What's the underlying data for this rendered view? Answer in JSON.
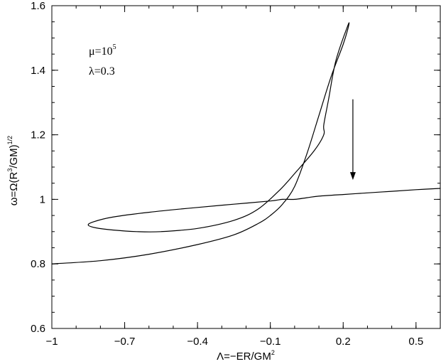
{
  "chart_data": {
    "type": "line",
    "title": "",
    "xlabel": {
      "prefix": "Λ=−ER/GM",
      "sup": "2"
    },
    "ylabel": {
      "prefix": "ω=Ω(R",
      "sup1": "3",
      "mid": "/GM)",
      "sup2": "1/2"
    },
    "xlim": [
      -1.0,
      0.6
    ],
    "ylim": [
      0.6,
      1.6
    ],
    "xticks": [
      -1.0,
      -0.7,
      -0.4,
      -0.1,
      0.2,
      0.5
    ],
    "xtick_labels": [
      "−1",
      "−0.7",
      "−0.4",
      "−0.1",
      "0.2",
      "0.5"
    ],
    "yticks": [
      0.6,
      0.8,
      1.0,
      1.2,
      1.4,
      1.6
    ],
    "ytick_labels": [
      "0.6",
      "0.8",
      "1",
      "1.2",
      "1.4",
      "1.6"
    ],
    "grid": false,
    "annotations": [
      {
        "text_base": "μ=10",
        "text_sup": "5"
      },
      {
        "text": "λ=0.3"
      }
    ],
    "arrow": {
      "x": 0.24,
      "y_start": 1.31,
      "y_end": 1.06,
      "direction": "down"
    },
    "series": [
      {
        "x": [
          -1.0,
          -0.8,
          -0.6,
          -0.4,
          -0.25,
          -0.15,
          -0.1,
          -0.05,
          0.0,
          0.05,
          0.1,
          0.15,
          0.2,
          0.22,
          0.22,
          0.17,
          0.14,
          0.12,
          0.12,
          0.08,
          0.0,
          -0.06,
          -0.15,
          -0.25,
          -0.4,
          -0.55,
          -0.65,
          -0.75,
          -0.82,
          -0.85,
          -0.83,
          -0.75,
          -0.6,
          -0.4,
          -0.25,
          -0.1,
          -0.05,
          0.0,
          0.05,
          0.1,
          0.2,
          0.3,
          0.4,
          0.5,
          0.6
        ],
        "y": [
          0.8,
          0.81,
          0.83,
          0.86,
          0.89,
          0.925,
          0.95,
          0.985,
          1.04,
          1.14,
          1.26,
          1.38,
          1.48,
          1.53,
          1.54,
          1.43,
          1.31,
          1.23,
          1.2,
          1.15,
          1.08,
          1.03,
          0.97,
          0.935,
          0.91,
          0.9,
          0.9,
          0.905,
          0.912,
          0.92,
          0.93,
          0.945,
          0.96,
          0.975,
          0.985,
          0.995,
          1.0,
          1.0,
          1.005,
          1.01,
          1.015,
          1.02,
          1.025,
          1.03,
          1.034
        ]
      }
    ]
  }
}
